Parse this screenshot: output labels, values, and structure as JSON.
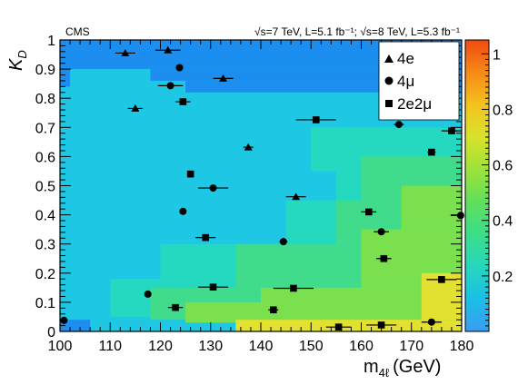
{
  "chart_data": {
    "type": "scatter",
    "experiment_label": "CMS",
    "energy_label": "√s=7 TeV, L=5.1 fb⁻¹; √s=8 TeV, L=5.3 fb⁻¹",
    "xlabel": "m4ℓ (GeV)",
    "xlabel_main": "m",
    "xlabel_sub": "4ℓ",
    "xlabel_unit": "(GeV)",
    "ylabel": "KD",
    "ylabel_main": "K",
    "ylabel_sub": "D",
    "xlim": [
      100,
      180
    ],
    "ylim": [
      0,
      1
    ],
    "x_ticks": [
      "100",
      "110",
      "120",
      "130",
      "140",
      "150",
      "160",
      "170",
      "180"
    ],
    "y_ticks": [
      "0",
      "0.1",
      "0.2",
      "0.3",
      "0.4",
      "0.5",
      "0.6",
      "0.7",
      "0.8",
      "0.9",
      "1"
    ],
    "colorbar": {
      "range": [
        0,
        1.05
      ],
      "ticks": [
        "0.2",
        "0.4",
        "0.6",
        "0.8",
        "1"
      ],
      "colors": [
        "#3c9cf2",
        "#19bfe6",
        "#28d6bd",
        "#3bde8a",
        "#5fe05a",
        "#9de23a",
        "#d8e22c",
        "#f5c21e",
        "#f68a16",
        "#f04a12"
      ]
    },
    "background_colors": {
      "low": "#1b8ef0",
      "cyan": "#1ec8e4",
      "teal": "#25d8c0",
      "green": "#40dc8c",
      "lime": "#7ae04e",
      "yellow": "#e2e030"
    },
    "legend": [
      {
        "label": "4e",
        "marker": "triangle"
      },
      {
        "label": "4μ",
        "marker": "circle"
      },
      {
        "label": "2e2μ",
        "marker": "square"
      }
    ],
    "series": [
      {
        "name": "4e",
        "marker": "triangle",
        "points": [
          {
            "x": 113.0,
            "y": 0.955,
            "xerr": 2.0
          },
          {
            "x": 121.5,
            "y": 0.965,
            "xerr": 2.5
          },
          {
            "x": 132.5,
            "y": 0.868,
            "xerr": 2.0
          },
          {
            "x": 115.0,
            "y": 0.765,
            "xerr": 1.5
          },
          {
            "x": 137.5,
            "y": 0.632,
            "xerr": 1.0
          },
          {
            "x": 147.0,
            "y": 0.462,
            "xerr": 2.0
          }
        ]
      },
      {
        "name": "4μ",
        "marker": "circle",
        "points": [
          {
            "x": 123.8,
            "y": 0.905,
            "xerr": 0.7
          },
          {
            "x": 122.0,
            "y": 0.843,
            "xerr": 2.5
          },
          {
            "x": 167.5,
            "y": 0.71,
            "xerr": 1.0
          },
          {
            "x": 130.5,
            "y": 0.492,
            "xerr": 3.0
          },
          {
            "x": 124.5,
            "y": 0.412,
            "xerr": 0.6
          },
          {
            "x": 179.8,
            "y": 0.398,
            "xerr": 2.0
          },
          {
            "x": 164.0,
            "y": 0.342,
            "xerr": 1.5
          },
          {
            "x": 144.5,
            "y": 0.308,
            "xerr": 0.8
          },
          {
            "x": 117.5,
            "y": 0.128,
            "xerr": 0.5
          },
          {
            "x": 100.8,
            "y": 0.038,
            "xerr": 0.5
          },
          {
            "x": 174.0,
            "y": 0.032,
            "xerr": 2.0
          }
        ]
      },
      {
        "name": "2e2μ",
        "marker": "square",
        "points": [
          {
            "x": 124.5,
            "y": 0.788,
            "xerr": 1.5
          },
          {
            "x": 151.0,
            "y": 0.726,
            "xerr": 4.0
          },
          {
            "x": 178.0,
            "y": 0.688,
            "xerr": 2.0
          },
          {
            "x": 174.0,
            "y": 0.615,
            "xerr": 0.8
          },
          {
            "x": 126.0,
            "y": 0.54,
            "xerr": 0.7
          },
          {
            "x": 161.5,
            "y": 0.41,
            "xerr": 1.5
          },
          {
            "x": 129.0,
            "y": 0.322,
            "xerr": 2.0
          },
          {
            "x": 164.5,
            "y": 0.25,
            "xerr": 1.5
          },
          {
            "x": 176.0,
            "y": 0.178,
            "xerr": 3.0
          },
          {
            "x": 130.5,
            "y": 0.152,
            "xerr": 3.0
          },
          {
            "x": 146.5,
            "y": 0.148,
            "xerr": 4.0
          },
          {
            "x": 123.0,
            "y": 0.082,
            "xerr": 1.5
          },
          {
            "x": 142.5,
            "y": 0.074,
            "xerr": 1.0
          },
          {
            "x": 155.5,
            "y": 0.015,
            "xerr": 2.5
          },
          {
            "x": 164.0,
            "y": 0.022,
            "xerr": 3.0
          }
        ]
      }
    ]
  }
}
